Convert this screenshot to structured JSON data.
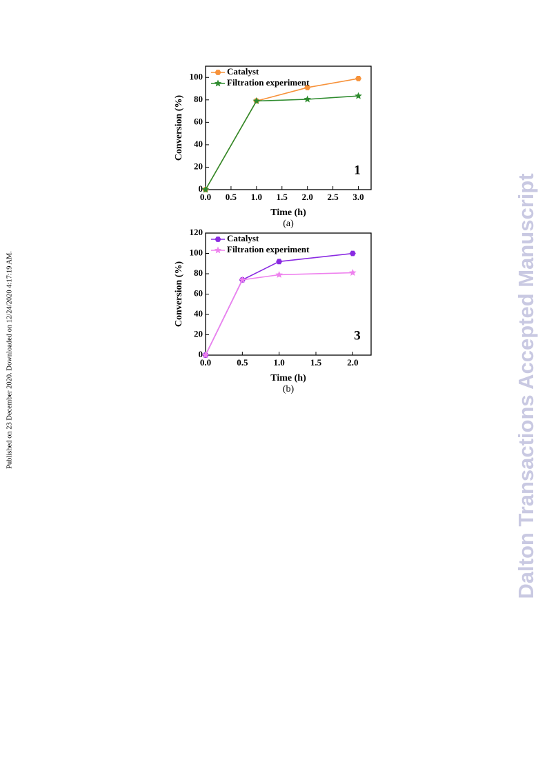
{
  "side_note": "Published on 23 December 2020. Downloaded on 12/24/2020 4:17:19 AM.",
  "watermark": "Dalton Transactions Accepted Manuscript",
  "chart_data": [
    {
      "type": "line",
      "xlabel": "Time (h)",
      "ylabel": "Conversion (%)",
      "annotation": "1",
      "caption": "(a)",
      "x": [
        0,
        1,
        2,
        3
      ],
      "series": [
        {
          "name": "Catalyst",
          "color": "#f7923a",
          "marker": "hexagon",
          "values": [
            0,
            79,
            91,
            99
          ]
        },
        {
          "name": "Filtration experiment",
          "color": "#2e8b2e",
          "marker": "star",
          "values": [
            0,
            79,
            80.5,
            83.5
          ]
        }
      ],
      "xlim": [
        0,
        3.25
      ],
      "xticks": [
        {
          "value": 0,
          "label": "0.0"
        },
        0.5,
        {
          "value": 1,
          "label": "1.0"
        },
        1.5,
        {
          "value": 2,
          "label": "2.0"
        },
        2.5,
        {
          "value": 3,
          "label": "3.0"
        }
      ],
      "ylim": [
        0,
        110
      ],
      "yticks": [
        0,
        20,
        40,
        60,
        80,
        100
      ],
      "legend": "upper left"
    },
    {
      "type": "line",
      "xlabel": "Time (h)",
      "ylabel": "Conversion (%)",
      "annotation": "3",
      "caption": "(b)",
      "x": [
        0,
        0.5,
        1,
        2
      ],
      "series": [
        {
          "name": "Catalyst",
          "color": "#8a2be2",
          "marker": "hexagon",
          "values": [
            0,
            74,
            92,
            100
          ]
        },
        {
          "name": "Filtration experiment",
          "color": "#ee82ee",
          "marker": "star",
          "values": [
            0,
            74,
            79,
            81
          ]
        }
      ],
      "xlim": [
        0,
        2.25
      ],
      "xticks": [
        {
          "value": 0,
          "label": "0.0"
        },
        0.5,
        {
          "value": 1,
          "label": "1.0"
        },
        1.5,
        {
          "value": 2,
          "label": "2.0"
        }
      ],
      "ylim": [
        0,
        120
      ],
      "yticks": [
        0,
        20,
        40,
        60,
        80,
        100,
        120
      ],
      "legend": "upper left"
    }
  ]
}
